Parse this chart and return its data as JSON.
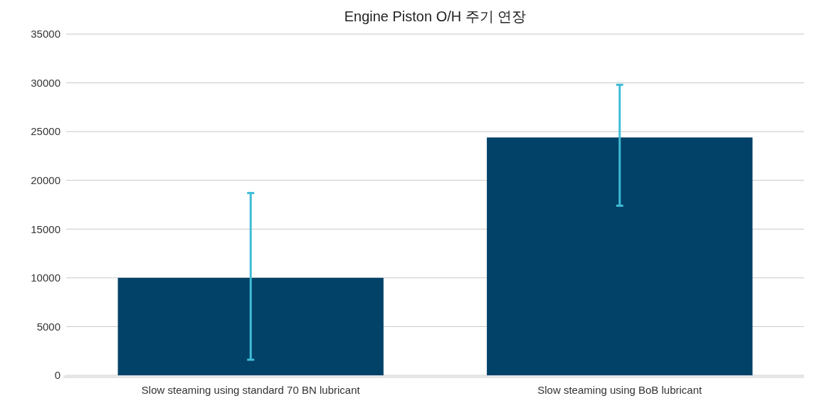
{
  "chart_data": {
    "type": "bar",
    "title": "Engine Piston O/H 주기 연장",
    "categories": [
      "Slow steaming using standard 70 BN lubricant",
      "Slow steaming using BoB lubricant"
    ],
    "values": [
      10000,
      24400
    ],
    "color": "#024268",
    "errors": [
      [
        1600,
        18700
      ],
      [
        17400,
        29800
      ]
    ],
    "ylim": [
      0,
      35000
    ],
    "yticks": [
      0,
      5000,
      10000,
      15000,
      20000,
      25000,
      30000,
      35000
    ],
    "grid": "y"
  }
}
